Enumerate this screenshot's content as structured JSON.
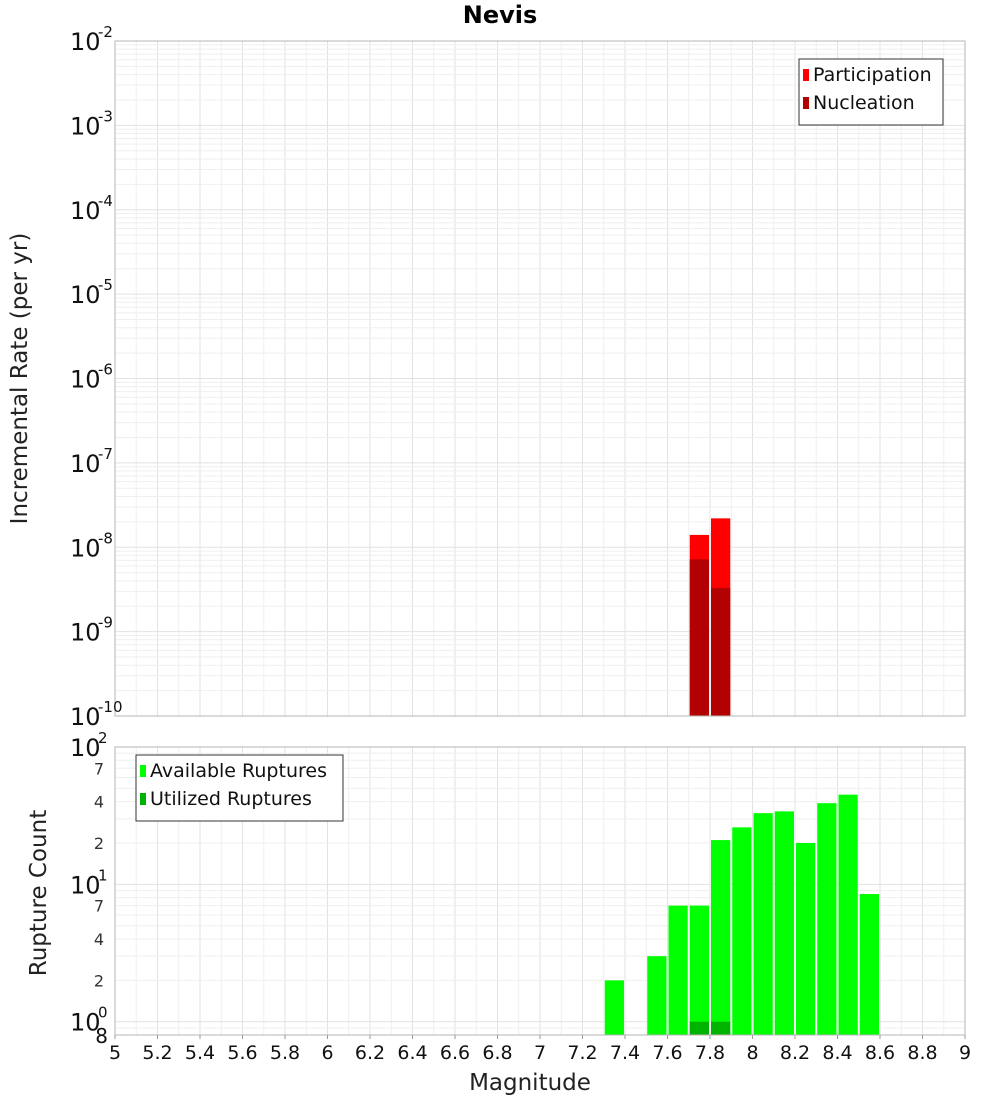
{
  "title": "Nevis",
  "chart_data": [
    {
      "type": "bar",
      "panel": "rate",
      "ylabel": "Incremental Rate (per yr)",
      "xlabel": "",
      "yscale": "log",
      "ylim": [
        1e-10,
        0.01
      ],
      "xlim": [
        5,
        9
      ],
      "y_ticks": [
        {
          "base": "10",
          "exp": "-10",
          "value": 1e-10
        },
        {
          "base": "10",
          "exp": "-9",
          "value": 1e-09
        },
        {
          "base": "10",
          "exp": "-8",
          "value": 1e-08
        },
        {
          "base": "10",
          "exp": "-7",
          "value": 1e-07
        },
        {
          "base": "10",
          "exp": "-6",
          "value": 1e-06
        },
        {
          "base": "10",
          "exp": "-5",
          "value": 1e-05
        },
        {
          "base": "10",
          "exp": "-4",
          "value": 0.0001
        },
        {
          "base": "10",
          "exp": "-3",
          "value": 0.001
        },
        {
          "base": "10",
          "exp": "-2",
          "value": 0.01
        }
      ],
      "legend_position": "top-right",
      "series": [
        {
          "name": "Participation",
          "color": "#ff0000",
          "x": [
            7.75,
            7.85
          ],
          "values": [
            1.4e-08,
            2.2e-08
          ]
        },
        {
          "name": "Nucleation",
          "color": "#b30000",
          "x": [
            7.75,
            7.85
          ],
          "values": [
            7.2e-09,
            3.3e-09
          ]
        }
      ],
      "grid": true
    },
    {
      "type": "bar",
      "panel": "count",
      "ylabel": "Rupture Count",
      "xlabel": "Magnitude",
      "yscale": "log",
      "ylim": [
        0.8,
        100
      ],
      "xlim": [
        5,
        9
      ],
      "x_ticks": [
        "5",
        "5.2",
        "5.4",
        "5.6",
        "5.8",
        "6",
        "6.2",
        "6.4",
        "6.6",
        "6.8",
        "7",
        "7.2",
        "7.4",
        "7.6",
        "7.8",
        "8",
        "8.2",
        "8.4",
        "8.6",
        "8.8",
        "9"
      ],
      "y_ticks": [
        {
          "base": "10",
          "exp": "0",
          "value": 1
        },
        {
          "base": "10",
          "exp": "1",
          "value": 10
        },
        {
          "base": "10",
          "exp": "2",
          "value": 100
        }
      ],
      "y_minor_ticks": [
        {
          "label": "8",
          "value": 0.8
        },
        {
          "label": "2",
          "value": 2
        },
        {
          "label": "4",
          "value": 4
        },
        {
          "label": "7",
          "value": 7
        },
        {
          "label": "2",
          "value": 20
        },
        {
          "label": "4",
          "value": 40
        },
        {
          "label": "7",
          "value": 70
        }
      ],
      "legend_position": "top-left",
      "series": [
        {
          "name": "Available Ruptures",
          "color": "#00ff00",
          "x": [
            7.35,
            7.55,
            7.65,
            7.75,
            7.85,
            7.95,
            8.05,
            8.15,
            8.25,
            8.35,
            8.45,
            8.55
          ],
          "values": [
            2,
            3,
            7,
            7,
            21,
            26,
            33,
            34,
            20,
            39,
            45,
            8.5
          ]
        },
        {
          "name": "Utilized Ruptures",
          "color": "#00b300",
          "x": [
            7.75,
            7.85
          ],
          "values": [
            1,
            1
          ]
        }
      ],
      "grid": true
    }
  ]
}
